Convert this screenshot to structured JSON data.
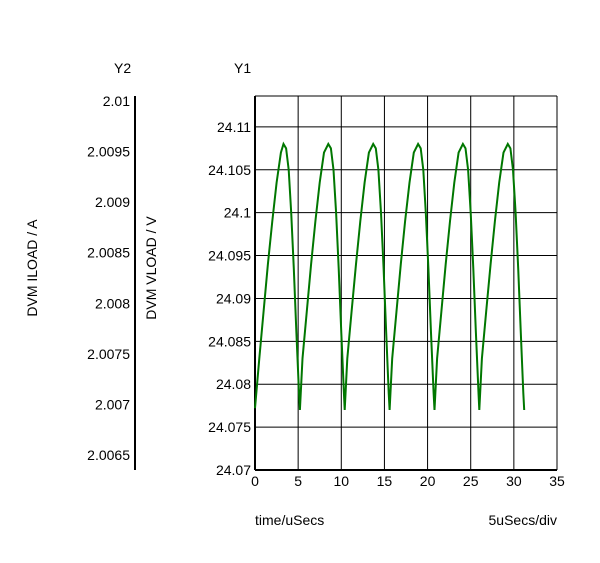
{
  "chart_data": {
    "type": "line",
    "y1_header": "Y1",
    "y2_header": "Y2",
    "x_axis": {
      "label": "time/uSecs",
      "scale_label": "5uSecs/div",
      "range": [
        0,
        35
      ],
      "ticks": [
        0,
        5,
        10,
        15,
        20,
        25,
        30,
        35
      ],
      "tick_labels": [
        "0",
        "5",
        "10",
        "15",
        "20",
        "25",
        "30",
        "35"
      ]
    },
    "y1_axis": {
      "label": "DVM VLOAD / V",
      "range": [
        24.07,
        24.1136
      ],
      "ticks": [
        24.07,
        24.075,
        24.08,
        24.085,
        24.09,
        24.095,
        24.1,
        24.105,
        24.11
      ],
      "tick_labels": [
        "24.07",
        "24.075",
        "24.08",
        "24.085",
        "24.09",
        "24.095",
        "24.1",
        "24.105",
        "24.11"
      ]
    },
    "y2_axis": {
      "label": "DVM ILOAD / A",
      "tick_labels": [
        "2.01",
        "2.0095",
        "2.009",
        "2.0085",
        "2.008",
        "2.0075",
        "2.007",
        "2.0065"
      ]
    },
    "grid": true,
    "colors": {
      "series": "#007700",
      "grid": "#000000"
    },
    "series": [
      {
        "axis": "y1",
        "x": [
          0,
          0.5,
          1,
          1.5,
          2,
          2.5,
          3,
          3.3,
          3.6,
          3.9,
          4.2,
          4.5,
          4.8,
          5.1,
          5.2,
          5.5,
          6,
          6.5,
          7,
          7.5,
          8,
          8.5,
          8.8,
          9.1,
          9.4,
          9.7,
          10,
          10.3,
          10.4,
          10.7,
          11.2,
          11.7,
          12.2,
          12.7,
          13.2,
          13.7,
          14,
          14.3,
          14.6,
          14.9,
          15.2,
          15.5,
          15.6,
          15.9,
          16.4,
          16.9,
          17.4,
          17.9,
          18.4,
          18.9,
          19.2,
          19.5,
          19.8,
          20.1,
          20.4,
          20.7,
          20.8,
          21.1,
          21.6,
          22.1,
          22.6,
          23.1,
          23.6,
          24.1,
          24.4,
          24.7,
          25,
          25.3,
          25.6,
          25.9,
          26,
          26.3,
          26.8,
          27.3,
          27.8,
          28.3,
          28.8,
          29.3,
          29.6,
          29.9,
          30.2,
          30.5,
          30.8,
          31.1,
          31.2
        ],
        "y": [
          24.0772,
          24.083,
          24.0885,
          24.094,
          24.099,
          24.1035,
          24.107,
          24.108,
          24.1075,
          24.105,
          24.1,
          24.0935,
          24.086,
          24.079,
          24.077,
          24.083,
          24.0885,
          24.094,
          24.099,
          24.1035,
          24.107,
          24.108,
          24.1075,
          24.105,
          24.1,
          24.0935,
          24.086,
          24.079,
          24.077,
          24.083,
          24.0885,
          24.094,
          24.099,
          24.1035,
          24.107,
          24.108,
          24.1075,
          24.105,
          24.1,
          24.0935,
          24.086,
          24.079,
          24.077,
          24.083,
          24.0885,
          24.094,
          24.099,
          24.1035,
          24.107,
          24.108,
          24.1075,
          24.105,
          24.1,
          24.0935,
          24.086,
          24.079,
          24.077,
          24.083,
          24.0885,
          24.094,
          24.099,
          24.1035,
          24.107,
          24.108,
          24.1075,
          24.105,
          24.1,
          24.0935,
          24.086,
          24.079,
          24.077,
          24.083,
          24.0885,
          24.094,
          24.099,
          24.1035,
          24.107,
          24.108,
          24.1075,
          24.105,
          24.1,
          24.0935,
          24.086,
          24.079,
          24.077
        ]
      }
    ]
  }
}
